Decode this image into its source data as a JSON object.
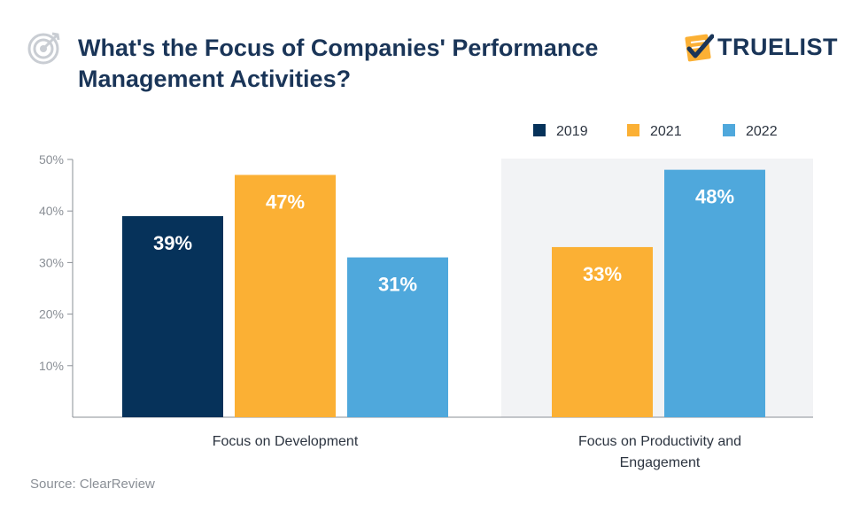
{
  "header": {
    "title_line1": "What's the Focus of Companies' Performance",
    "title_line2": "Management Activities?",
    "brand_name": "TRUELIST",
    "icons": {
      "left": "target-icon",
      "brand": "checklist-icon"
    }
  },
  "source": "Source: ClearReview",
  "colors": {
    "2019": "#06325a",
    "2021": "#fbb034",
    "2022": "#4fa8dc",
    "highlight_bg": "#f2f3f5",
    "axis": "#8a8f96",
    "text": "#1a3558"
  },
  "chart_data": {
    "type": "bar",
    "title": "What's the Focus of Companies' Performance Management Activities?",
    "categories": [
      {
        "lines": [
          "Focus on Development"
        ]
      },
      {
        "lines": [
          "Focus on Productivity and",
          "Engagement"
        ]
      }
    ],
    "series": [
      {
        "name": "2019",
        "values": [
          39,
          null
        ]
      },
      {
        "name": "2021",
        "values": [
          47,
          33
        ]
      },
      {
        "name": "2022",
        "values": [
          31,
          48
        ]
      }
    ],
    "data_labels": [
      [
        "39%",
        "47%",
        "31%"
      ],
      [
        "33%",
        "48%"
      ]
    ],
    "yticks": [
      "10%",
      "20%",
      "30%",
      "40%",
      "50%"
    ],
    "ytick_values": [
      10,
      20,
      30,
      40,
      50
    ],
    "ylim": [
      0,
      50
    ],
    "legend_position": "top-right",
    "highlighted_category": 1,
    "xlabel": "",
    "ylabel": ""
  }
}
